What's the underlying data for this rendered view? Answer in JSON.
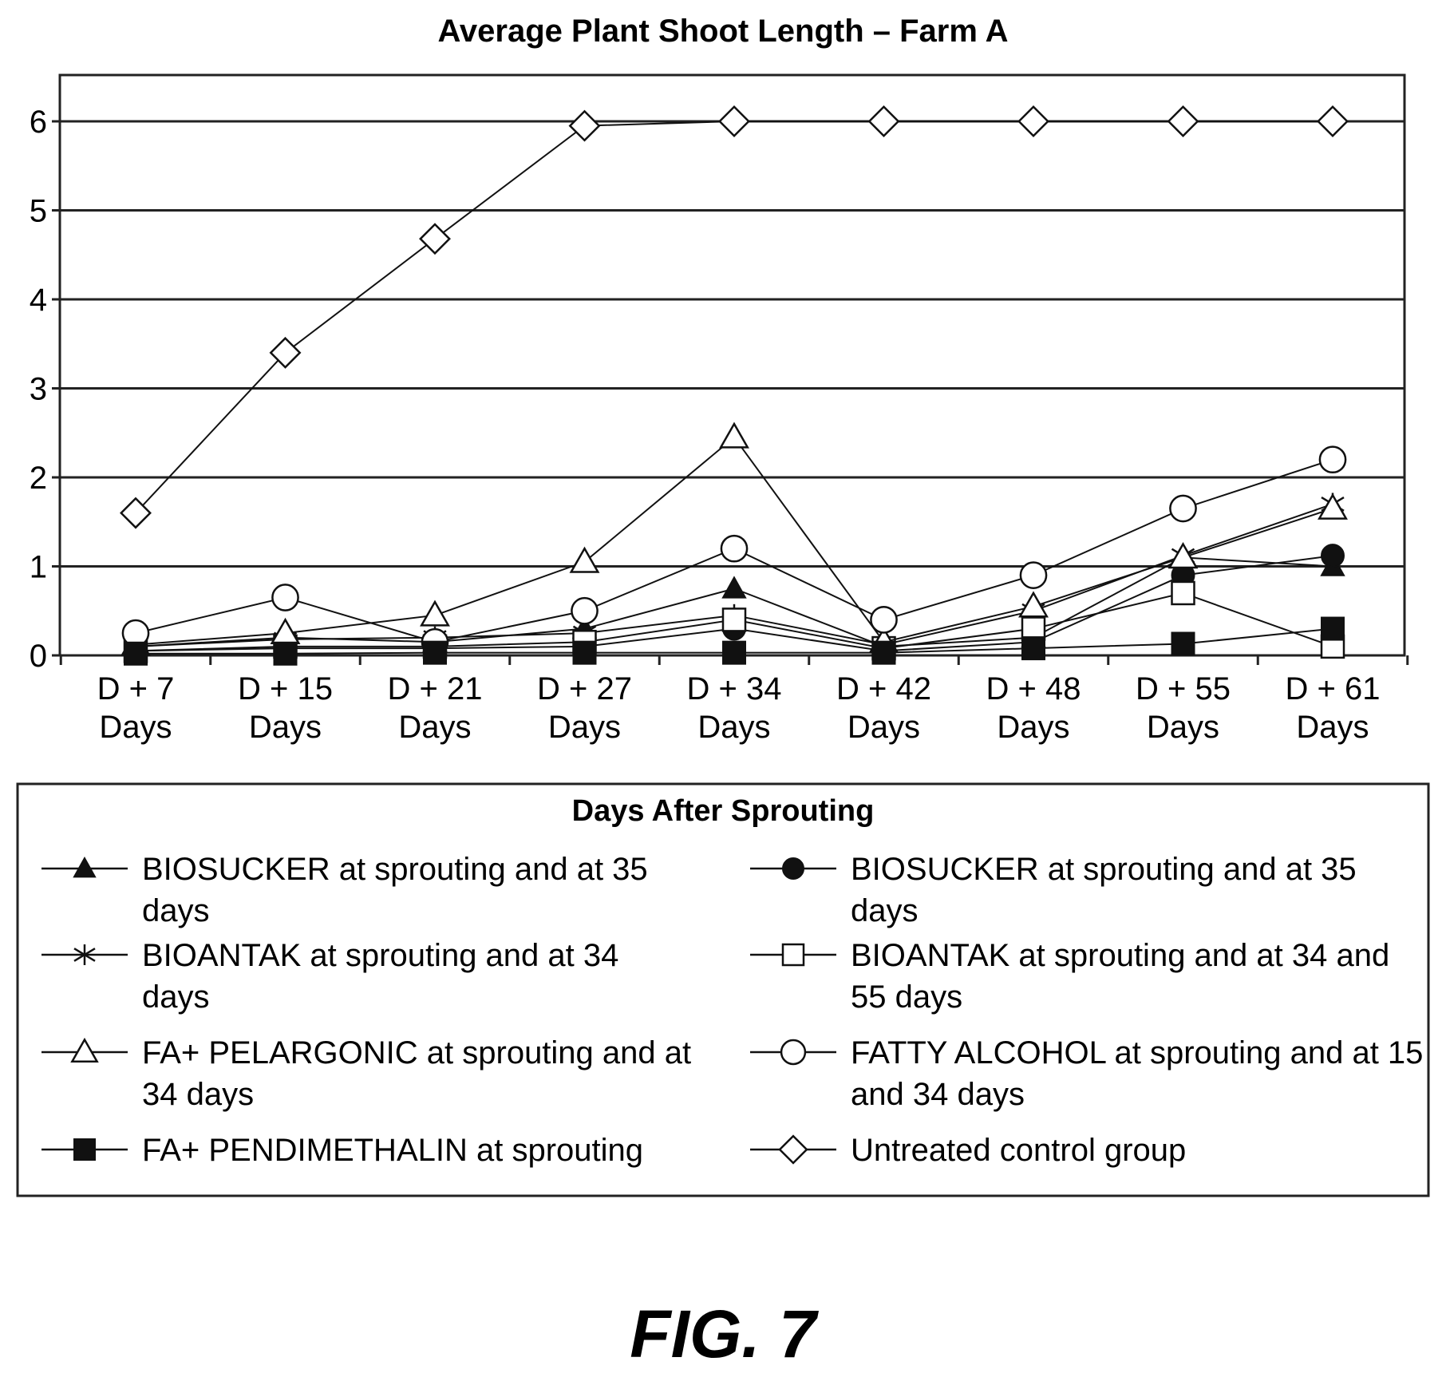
{
  "chart_data": {
    "type": "line",
    "title": "Average Plant Shoot Length – Farm A",
    "xlabel": "Days After Sprouting",
    "ylabel": "",
    "ylim": [
      0,
      6.5
    ],
    "yticks": [
      "0",
      "1",
      "2",
      "3",
      "4",
      "5",
      "6"
    ],
    "grid": true,
    "legend_position": "bottom",
    "categories": [
      [
        "D + 7",
        "Days"
      ],
      [
        "D + 15",
        "Days"
      ],
      [
        "D + 21",
        "Days"
      ],
      [
        "D + 27",
        "Days"
      ],
      [
        "D + 34",
        "Days"
      ],
      [
        "D + 42",
        "Days"
      ],
      [
        "D + 48",
        "Days"
      ],
      [
        "D + 55",
        "Days"
      ],
      [
        "D + 61",
        "Days"
      ]
    ],
    "series": [
      {
        "name": "BIOSUCKER at sprouting and at 35 days",
        "marker": "triangle-filled",
        "values": [
          0.1,
          0.2,
          0.15,
          0.3,
          0.75,
          0.1,
          0.2,
          1.1,
          1.0
        ]
      },
      {
        "name": "BIOSUCKER at sprouting and at 35 days",
        "marker": "circle-filled",
        "values": [
          0.05,
          0.08,
          0.08,
          0.1,
          0.3,
          0.05,
          0.15,
          0.9,
          1.12
        ]
      },
      {
        "name": "BIOANTAK at sprouting and at 34 days",
        "marker": "asterisk",
        "values": [
          0.1,
          0.18,
          0.2,
          0.25,
          0.45,
          0.12,
          0.5,
          1.12,
          1.7
        ]
      },
      {
        "name": "BIOANTAK at sprouting and at 34 and 55 days",
        "marker": "square-open",
        "values": [
          0.05,
          0.1,
          0.1,
          0.15,
          0.4,
          0.08,
          0.3,
          0.7,
          0.1
        ]
      },
      {
        "name": "FA+ PELARGONIC at sprouting and at 34 days",
        "marker": "triangle-open",
        "values": [
          0.12,
          0.25,
          0.45,
          1.05,
          2.45,
          0.15,
          0.55,
          1.1,
          1.65
        ]
      },
      {
        "name": "FATTY ALCOHOL at sprouting and at 15 and 34 days",
        "marker": "circle-open",
        "values": [
          0.25,
          0.65,
          0.15,
          0.5,
          1.2,
          0.4,
          0.9,
          1.65,
          2.2
        ]
      },
      {
        "name": "FA+ PENDIMETHALIN at sprouting",
        "marker": "square-filled",
        "values": [
          0.02,
          0.02,
          0.03,
          0.03,
          0.03,
          0.03,
          0.08,
          0.13,
          0.3
        ]
      },
      {
        "name": "Untreated control group",
        "marker": "diamond-open",
        "values": [
          1.6,
          3.4,
          4.68,
          5.95,
          6.0,
          6.0,
          6.0,
          6.0,
          6.0
        ]
      }
    ]
  },
  "figure_label": "FIG. 7"
}
